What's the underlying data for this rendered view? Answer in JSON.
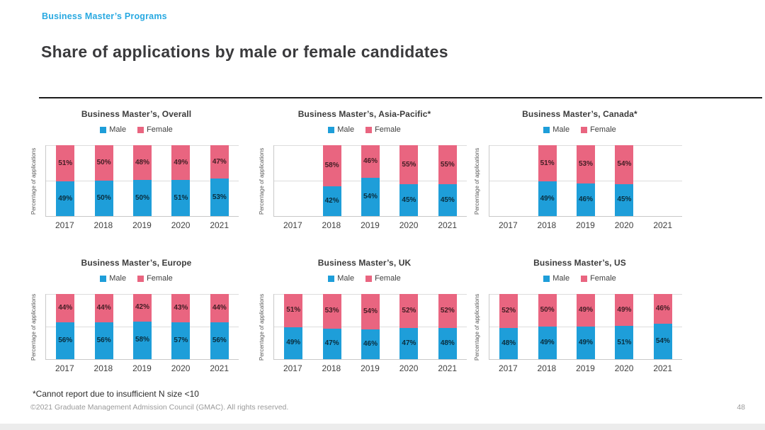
{
  "header": {
    "eyebrow": "Business Master’s Programs",
    "title": "Share of applications by male or female candidates"
  },
  "colors": {
    "male": "#1E9ED9",
    "female": "#E96580",
    "accent_blue": "#29A9E1"
  },
  "ylabel": "Percentage of applications",
  "chart_data": [
    {
      "id": "overall",
      "type": "bar",
      "stacked": true,
      "title": "Business Master’s, Overall",
      "ylabel": "Percentage of applications",
      "ylim": [
        0,
        100
      ],
      "legend_position": "top",
      "grid": "partial",
      "categories": [
        "2017",
        "2018",
        "2019",
        "2020",
        "2021"
      ],
      "series": [
        {
          "name": "Male",
          "color": "#1E9ED9",
          "values": [
            49,
            50,
            50,
            51,
            53
          ]
        },
        {
          "name": "Female",
          "color": "#E96580",
          "values": [
            51,
            50,
            48,
            49,
            47
          ]
        }
      ]
    },
    {
      "id": "asia-pacific",
      "type": "bar",
      "stacked": true,
      "title": "Business Master’s, Asia-Pacific*",
      "ylabel": "Percentage of applications",
      "ylim": [
        0,
        100
      ],
      "legend_position": "top",
      "grid": "partial",
      "categories": [
        "2017",
        "2018",
        "2019",
        "2020",
        "2021"
      ],
      "series": [
        {
          "name": "Male",
          "color": "#1E9ED9",
          "values": [
            null,
            42,
            54,
            45,
            45
          ]
        },
        {
          "name": "Female",
          "color": "#E96580",
          "values": [
            null,
            58,
            46,
            55,
            55
          ]
        }
      ]
    },
    {
      "id": "canada",
      "type": "bar",
      "stacked": true,
      "title": "Business Master’s, Canada*",
      "ylabel": "Percentage of applications",
      "ylim": [
        0,
        100
      ],
      "legend_position": "top",
      "grid": "partial",
      "categories": [
        "2017",
        "2018",
        "2019",
        "2020",
        "2021"
      ],
      "series": [
        {
          "name": "Male",
          "color": "#1E9ED9",
          "values": [
            null,
            49,
            46,
            45,
            null
          ]
        },
        {
          "name": "Female",
          "color": "#E96580",
          "values": [
            null,
            51,
            53,
            54,
            null
          ]
        }
      ]
    },
    {
      "id": "europe",
      "type": "bar",
      "stacked": true,
      "title": "Business Master’s, Europe",
      "ylabel": "Percentage of applications",
      "ylim": [
        0,
        100
      ],
      "legend_position": "top",
      "grid": "partial",
      "categories": [
        "2017",
        "2018",
        "2019",
        "2020",
        "2021"
      ],
      "series": [
        {
          "name": "Male",
          "color": "#1E9ED9",
          "values": [
            56,
            56,
            58,
            57,
            56
          ]
        },
        {
          "name": "Female",
          "color": "#E96580",
          "values": [
            44,
            44,
            42,
            43,
            44
          ]
        }
      ]
    },
    {
      "id": "uk",
      "type": "bar",
      "stacked": true,
      "title": "Business Master’s, UK",
      "ylabel": "Percentage of applications",
      "ylim": [
        0,
        100
      ],
      "legend_position": "top",
      "grid": "partial",
      "categories": [
        "2017",
        "2018",
        "2019",
        "2020",
        "2021"
      ],
      "series": [
        {
          "name": "Male",
          "color": "#1E9ED9",
          "values": [
            49,
            47,
            46,
            47,
            48
          ]
        },
        {
          "name": "Female",
          "color": "#E96580",
          "values": [
            51,
            53,
            54,
            52,
            52
          ]
        }
      ]
    },
    {
      "id": "us",
      "type": "bar",
      "stacked": true,
      "title": "Business Master’s, US",
      "ylabel": "Percentage of applications",
      "ylim": [
        0,
        100
      ],
      "legend_position": "top",
      "grid": "partial",
      "categories": [
        "2017",
        "2018",
        "2019",
        "2020",
        "2021"
      ],
      "series": [
        {
          "name": "Male",
          "color": "#1E9ED9",
          "values": [
            48,
            49,
            49,
            51,
            54
          ]
        },
        {
          "name": "Female",
          "color": "#E96580",
          "values": [
            52,
            50,
            49,
            49,
            46
          ]
        }
      ]
    }
  ],
  "footer": {
    "footnote": "*Cannot report due to insufficient N size <10",
    "copyright": "©2021 Graduate Management Admission Council (GMAC). All rights reserved.",
    "page_number": "48"
  }
}
